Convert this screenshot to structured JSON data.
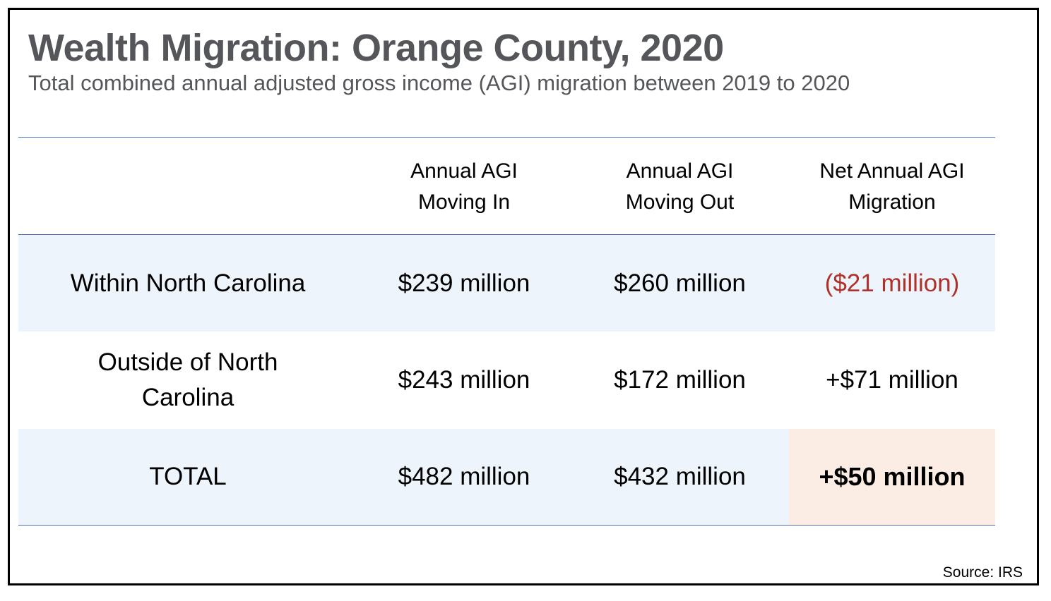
{
  "title": "Wealth Migration: Orange County, 2020",
  "subtitle": "Total combined annual adjusted gross income (AGI) migration between 2019 to 2020",
  "source": "Source: IRS",
  "colors": {
    "title_text": "#54565a",
    "row_shade": "#edf4fb",
    "highlight": "#fbede4",
    "negative": "#b0302a",
    "rule": "#4a6fb5"
  },
  "chart_data": {
    "type": "table",
    "title": "Wealth Migration: Orange County, 2020",
    "subtitle": "Total combined annual adjusted gross income (AGI) migration between 2019 to 2020",
    "columns": [
      "",
      "Annual AGI Moving In",
      "Annual AGI Moving Out",
      "Net Annual AGI Migration"
    ],
    "header": {
      "col1_line1": "Annual AGI",
      "col1_line2": "Moving In",
      "col2_line1": "Annual AGI",
      "col2_line2": "Moving Out",
      "col3_line1": "Net Annual AGI",
      "col3_line2": "Migration"
    },
    "rows": [
      {
        "label": "Within North Carolina",
        "moving_in": "$239 million",
        "moving_out": "$260 million",
        "net": "($21 million)"
      },
      {
        "label": "Outside of North Carolina",
        "moving_in": "$243 million",
        "moving_out": "$172 million",
        "net": "+$71 million"
      },
      {
        "label": "TOTAL",
        "moving_in": "$482 million",
        "moving_out": "$432 million",
        "net": "+$50 million"
      }
    ],
    "values_millions": {
      "moving_in": [
        239,
        243,
        482
      ],
      "moving_out": [
        260,
        172,
        432
      ],
      "net": [
        -21,
        71,
        50
      ]
    },
    "source": "Source: IRS"
  }
}
